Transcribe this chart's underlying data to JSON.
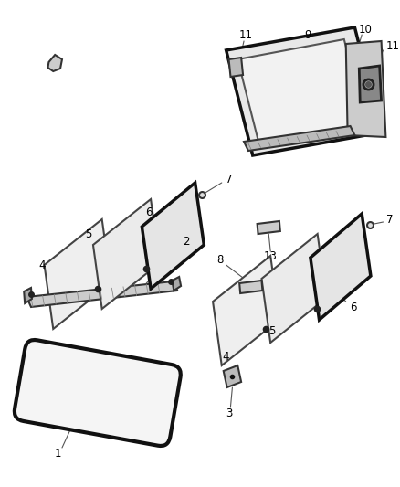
{
  "background_color": "#ffffff",
  "fig_width": 4.38,
  "fig_height": 5.33,
  "dpi": 100,
  "line_color": "#111111",
  "text_color": "#000000",
  "font_size": 8.5
}
